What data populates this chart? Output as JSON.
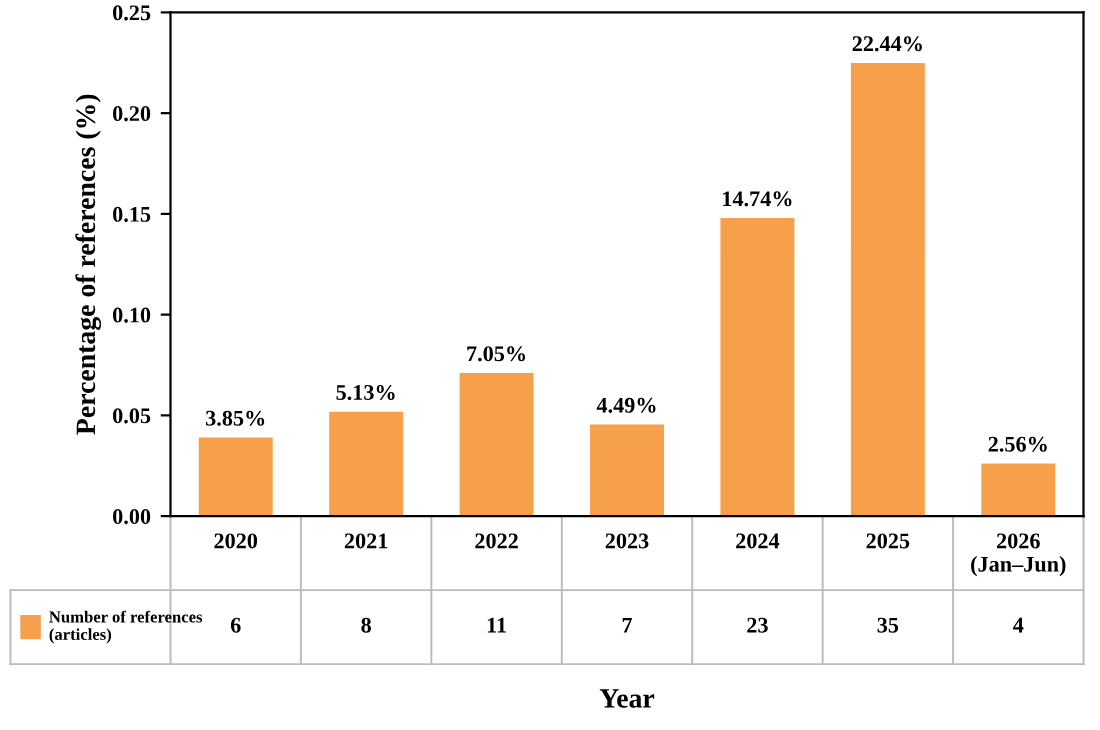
{
  "chart_data": {
    "type": "bar",
    "xlabel": "Year",
    "ylabel": "Percentage of references (%)",
    "categories": [
      "2020",
      "2021",
      "2022",
      "2023",
      "2024",
      "2025",
      "2026\n(Jan–Jun)"
    ],
    "series": [
      {
        "name": "Number of references\n(articles)",
        "color": "#f7a04c",
        "values": [
          0.0385,
          0.0513,
          0.0705,
          0.0449,
          0.1474,
          0.2244,
          0.0256
        ],
        "value_labels": [
          "3.85%",
          "5.13%",
          "7.05%",
          "4.49%",
          "14.74%",
          "22.44%",
          "2.56%"
        ]
      }
    ],
    "ylim": [
      0,
      0.25
    ],
    "yticks": [
      {
        "value": 0,
        "label": "0.00"
      },
      {
        "value": 0.05,
        "label": "0.05"
      },
      {
        "value": 0.1,
        "label": "0.10"
      },
      {
        "value": 0.15,
        "label": "0.15"
      },
      {
        "value": 0.2,
        "label": "0.20"
      },
      {
        "value": 0.25,
        "label": "0.25"
      }
    ],
    "annotations": [
      "6",
      "8",
      "11",
      "7",
      "23",
      "35",
      "4"
    ],
    "grid": false,
    "legend": "bottom"
  }
}
